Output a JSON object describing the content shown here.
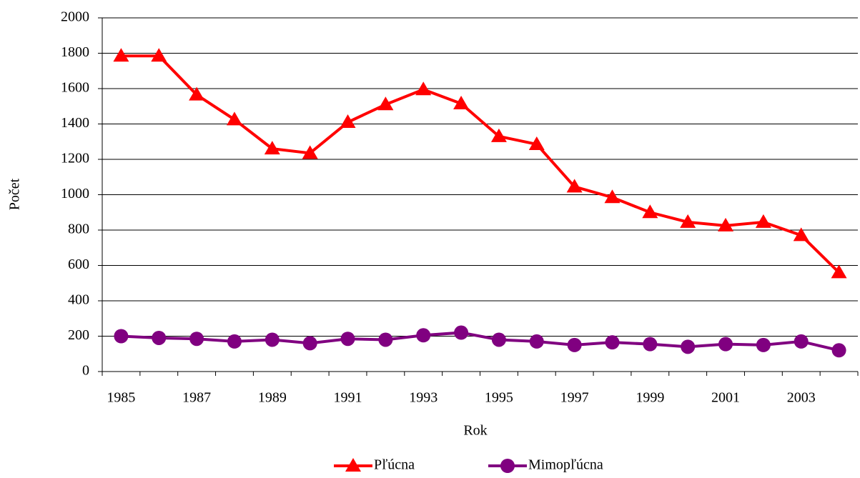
{
  "chart_data": {
    "type": "line",
    "x_label": "Rok",
    "y_label": "Počet",
    "categories": [
      "1985",
      null,
      "1987",
      null,
      "1989",
      null,
      "1991",
      null,
      "1993",
      null,
      "1995",
      null,
      "1997",
      null,
      "1999",
      null,
      "2001",
      null,
      "2003",
      null
    ],
    "series": [
      {
        "name": "Pľúcna",
        "color": "#ff0000",
        "marker": "triangle",
        "values": [
          1785,
          1785,
          1565,
          1425,
          1260,
          1235,
          1410,
          1510,
          1595,
          1515,
          1330,
          1285,
          1045,
          985,
          900,
          845,
          825,
          845,
          770,
          560
        ]
      },
      {
        "name": "Mimopľúcna",
        "color": "#800080",
        "marker": "circle",
        "values": [
          200,
          190,
          185,
          170,
          180,
          160,
          185,
          180,
          205,
          220,
          180,
          170,
          150,
          165,
          155,
          140,
          155,
          150,
          170,
          120
        ]
      }
    ],
    "ylim": [
      0,
      2000
    ],
    "yticks": [
      0,
      200,
      400,
      600,
      800,
      1000,
      1200,
      1400,
      1600,
      1800,
      2000
    ],
    "grid": true,
    "legend": "bottom"
  }
}
